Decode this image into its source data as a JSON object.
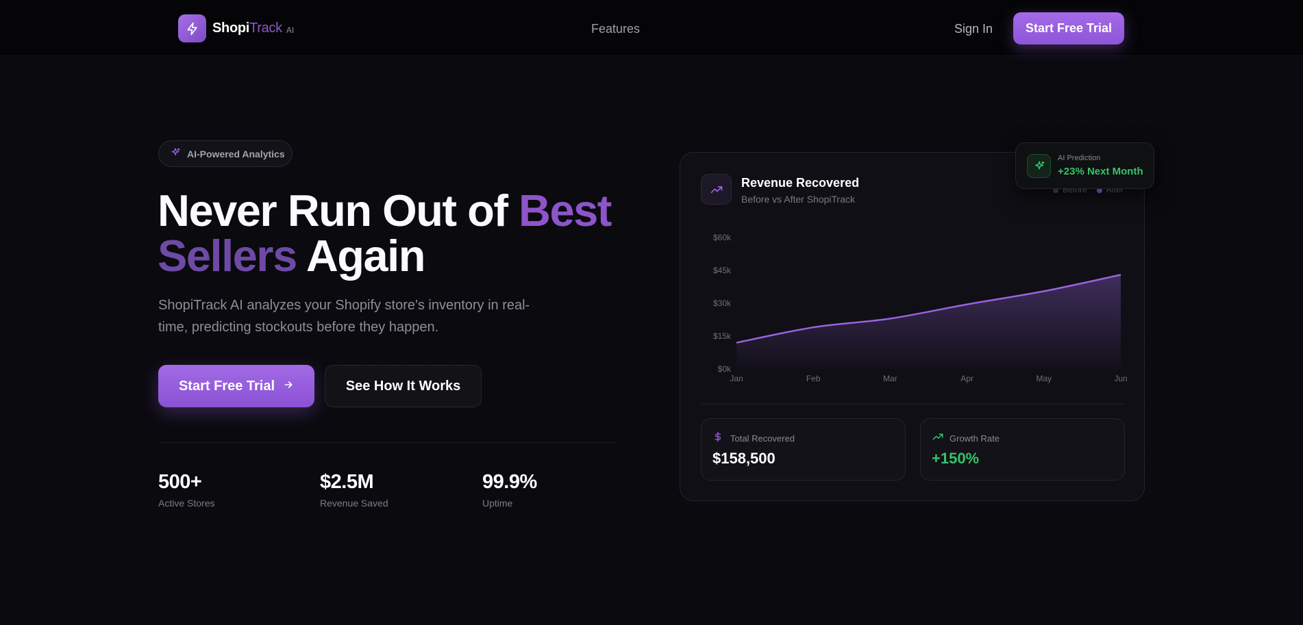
{
  "nav": {
    "logo_word_1": "Shopi",
    "logo_word_2": "Track",
    "logo_badge": "AI",
    "features_link": "Features",
    "signin_link": "Sign In",
    "cta_label": "Start Free Trial"
  },
  "hero": {
    "pill_label": "AI-Powered Analytics",
    "headline_part1": "Never Run Out of ",
    "headline_accent1": "Best",
    "headline_accent2": "Sellers",
    "headline_part2": " Again",
    "subtext": "ShopiTrack AI analyzes your Shopify store's inventory in real-time, predicting stockouts before they happen.",
    "primary_button": "Start Free Trial",
    "secondary_button": "See How It Works"
  },
  "stats": [
    {
      "value": "500+",
      "label": "Active Stores"
    },
    {
      "value": "$2.5M",
      "label": "Revenue Saved"
    },
    {
      "value": "99.9%",
      "label": "Uptime"
    }
  ],
  "card": {
    "title": "Revenue Recovered",
    "subtitle": "Before vs After ShopiTrack",
    "legend": [
      "Before",
      "After"
    ],
    "total_label": "Total Recovered",
    "total_value": "$158,500",
    "growth_label": "Growth Rate",
    "growth_value": "+150%"
  },
  "ai_prediction": {
    "label": "AI Prediction",
    "value": "+23% Next Month"
  },
  "colors": {
    "accent": "#9b63e0",
    "positive": "#35c46a",
    "background": "#0a0a0f"
  },
  "chart_data": {
    "type": "area",
    "categories": [
      "Jan",
      "Feb",
      "Mar",
      "Apr",
      "May",
      "Jun"
    ],
    "yticks": [
      "$0k",
      "$15k",
      "$30k",
      "$45k",
      "$60k"
    ],
    "ylim": [
      0,
      60000
    ],
    "series": [
      {
        "name": "After",
        "values": [
          12000,
          19000,
          23000,
          29500,
          35500,
          43000
        ]
      }
    ],
    "legend_position": "top-right"
  }
}
